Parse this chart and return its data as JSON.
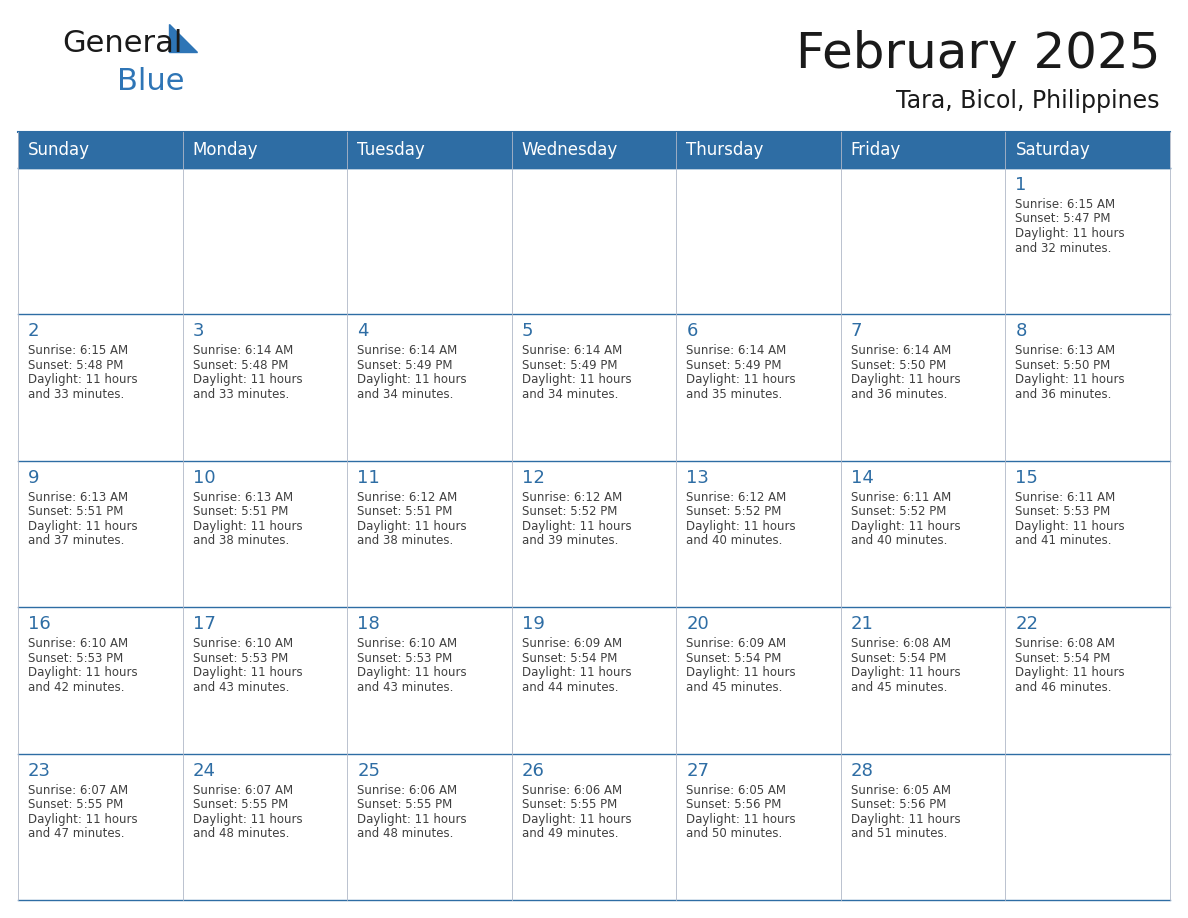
{
  "title": "February 2025",
  "subtitle": "Tara, Bicol, Philippines",
  "days_of_week": [
    "Sunday",
    "Monday",
    "Tuesday",
    "Wednesday",
    "Thursday",
    "Friday",
    "Saturday"
  ],
  "header_bg_color": "#2E6DA4",
  "header_text_color": "#FFFFFF",
  "bg_color": "#FFFFFF",
  "line_color": "#2E6DA4",
  "day_number_color": "#2E6DA4",
  "text_color": "#404040",
  "calendar_data": [
    [
      null,
      null,
      null,
      null,
      null,
      null,
      {
        "day": 1,
        "sunrise": "6:15 AM",
        "sunset": "5:47 PM",
        "daylight_h": "11 hours",
        "daylight_m": "and 32 minutes."
      }
    ],
    [
      {
        "day": 2,
        "sunrise": "6:15 AM",
        "sunset": "5:48 PM",
        "daylight_h": "11 hours",
        "daylight_m": "and 33 minutes."
      },
      {
        "day": 3,
        "sunrise": "6:14 AM",
        "sunset": "5:48 PM",
        "daylight_h": "11 hours",
        "daylight_m": "and 33 minutes."
      },
      {
        "day": 4,
        "sunrise": "6:14 AM",
        "sunset": "5:49 PM",
        "daylight_h": "11 hours",
        "daylight_m": "and 34 minutes."
      },
      {
        "day": 5,
        "sunrise": "6:14 AM",
        "sunset": "5:49 PM",
        "daylight_h": "11 hours",
        "daylight_m": "and 34 minutes."
      },
      {
        "day": 6,
        "sunrise": "6:14 AM",
        "sunset": "5:49 PM",
        "daylight_h": "11 hours",
        "daylight_m": "and 35 minutes."
      },
      {
        "day": 7,
        "sunrise": "6:14 AM",
        "sunset": "5:50 PM",
        "daylight_h": "11 hours",
        "daylight_m": "and 36 minutes."
      },
      {
        "day": 8,
        "sunrise": "6:13 AM",
        "sunset": "5:50 PM",
        "daylight_h": "11 hours",
        "daylight_m": "and 36 minutes."
      }
    ],
    [
      {
        "day": 9,
        "sunrise": "6:13 AM",
        "sunset": "5:51 PM",
        "daylight_h": "11 hours",
        "daylight_m": "and 37 minutes."
      },
      {
        "day": 10,
        "sunrise": "6:13 AM",
        "sunset": "5:51 PM",
        "daylight_h": "11 hours",
        "daylight_m": "and 38 minutes."
      },
      {
        "day": 11,
        "sunrise": "6:12 AM",
        "sunset": "5:51 PM",
        "daylight_h": "11 hours",
        "daylight_m": "and 38 minutes."
      },
      {
        "day": 12,
        "sunrise": "6:12 AM",
        "sunset": "5:52 PM",
        "daylight_h": "11 hours",
        "daylight_m": "and 39 minutes."
      },
      {
        "day": 13,
        "sunrise": "6:12 AM",
        "sunset": "5:52 PM",
        "daylight_h": "11 hours",
        "daylight_m": "and 40 minutes."
      },
      {
        "day": 14,
        "sunrise": "6:11 AM",
        "sunset": "5:52 PM",
        "daylight_h": "11 hours",
        "daylight_m": "and 40 minutes."
      },
      {
        "day": 15,
        "sunrise": "6:11 AM",
        "sunset": "5:53 PM",
        "daylight_h": "11 hours",
        "daylight_m": "and 41 minutes."
      }
    ],
    [
      {
        "day": 16,
        "sunrise": "6:10 AM",
        "sunset": "5:53 PM",
        "daylight_h": "11 hours",
        "daylight_m": "and 42 minutes."
      },
      {
        "day": 17,
        "sunrise": "6:10 AM",
        "sunset": "5:53 PM",
        "daylight_h": "11 hours",
        "daylight_m": "and 43 minutes."
      },
      {
        "day": 18,
        "sunrise": "6:10 AM",
        "sunset": "5:53 PM",
        "daylight_h": "11 hours",
        "daylight_m": "and 43 minutes."
      },
      {
        "day": 19,
        "sunrise": "6:09 AM",
        "sunset": "5:54 PM",
        "daylight_h": "11 hours",
        "daylight_m": "and 44 minutes."
      },
      {
        "day": 20,
        "sunrise": "6:09 AM",
        "sunset": "5:54 PM",
        "daylight_h": "11 hours",
        "daylight_m": "and 45 minutes."
      },
      {
        "day": 21,
        "sunrise": "6:08 AM",
        "sunset": "5:54 PM",
        "daylight_h": "11 hours",
        "daylight_m": "and 45 minutes."
      },
      {
        "day": 22,
        "sunrise": "6:08 AM",
        "sunset": "5:54 PM",
        "daylight_h": "11 hours",
        "daylight_m": "and 46 minutes."
      }
    ],
    [
      {
        "day": 23,
        "sunrise": "6:07 AM",
        "sunset": "5:55 PM",
        "daylight_h": "11 hours",
        "daylight_m": "and 47 minutes."
      },
      {
        "day": 24,
        "sunrise": "6:07 AM",
        "sunset": "5:55 PM",
        "daylight_h": "11 hours",
        "daylight_m": "and 48 minutes."
      },
      {
        "day": 25,
        "sunrise": "6:06 AM",
        "sunset": "5:55 PM",
        "daylight_h": "11 hours",
        "daylight_m": "and 48 minutes."
      },
      {
        "day": 26,
        "sunrise": "6:06 AM",
        "sunset": "5:55 PM",
        "daylight_h": "11 hours",
        "daylight_m": "and 49 minutes."
      },
      {
        "day": 27,
        "sunrise": "6:05 AM",
        "sunset": "5:56 PM",
        "daylight_h": "11 hours",
        "daylight_m": "and 50 minutes."
      },
      {
        "day": 28,
        "sunrise": "6:05 AM",
        "sunset": "5:56 PM",
        "daylight_h": "11 hours",
        "daylight_m": "and 51 minutes."
      },
      null
    ]
  ],
  "logo_triangle_color": "#2E75B6",
  "title_fontsize": 36,
  "subtitle_fontsize": 17,
  "header_fontsize": 12,
  "day_num_fontsize": 13,
  "cell_text_fontsize": 8.5
}
